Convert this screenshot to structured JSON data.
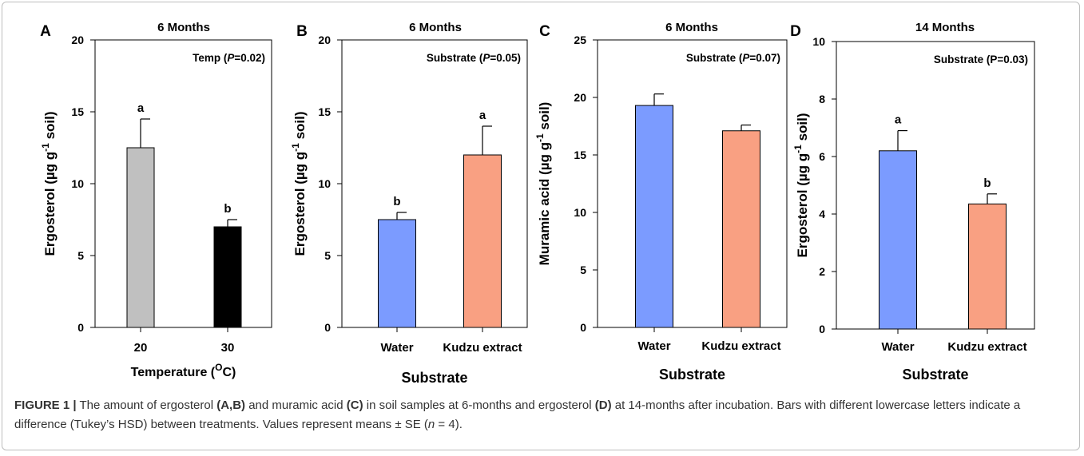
{
  "chart_data": [
    {
      "type": "bar",
      "panel_label": "A",
      "title": "6 Months",
      "annotation": "Temp (P=0.02)",
      "annotation_parts": [
        "Temp (",
        "P",
        "=0.02)"
      ],
      "ylabel_parts": [
        "Ergosterol (µg g",
        "-1",
        " soil)"
      ],
      "xlabel_parts": [
        "Temperature (",
        "O",
        "C)"
      ],
      "ylim": [
        0,
        20
      ],
      "yticks": [
        0,
        5,
        10,
        15,
        20
      ],
      "categories": [
        "20",
        "30"
      ],
      "values": [
        12.5,
        7.0
      ],
      "errors": [
        2.0,
        0.5
      ],
      "letters": [
        "a",
        "b"
      ],
      "colors": [
        "#c0c0c0",
        "#000000"
      ]
    },
    {
      "type": "bar",
      "panel_label": "B",
      "title": "6 Months",
      "annotation": "Substrate (P=0.05)",
      "annotation_parts": [
        "Substrate (",
        "P",
        "=0.05)"
      ],
      "ylabel_parts": [
        "Ergosterol (µg g",
        "-1",
        " soil)"
      ],
      "xlabel_parts": [
        "Substrate",
        "",
        ""
      ],
      "ylim": [
        0,
        20
      ],
      "yticks": [
        0,
        5,
        10,
        15,
        20
      ],
      "categories": [
        "Water",
        "Kudzu extract"
      ],
      "values": [
        7.5,
        12.0
      ],
      "errors": [
        0.5,
        2.0
      ],
      "letters": [
        "b",
        "a"
      ],
      "colors": [
        "#7b9bff",
        "#f9a082"
      ]
    },
    {
      "type": "bar",
      "panel_label": "C",
      "title": "6 Months",
      "annotation": "Substrate (P=0.07)",
      "annotation_parts": [
        "Substrate (",
        "P",
        "=0.07)"
      ],
      "ylabel_parts": [
        "Muramic acid (µg g",
        "-1",
        " soil)"
      ],
      "xlabel_parts": [
        "Substrate",
        "",
        ""
      ],
      "ylim": [
        0,
        25
      ],
      "yticks": [
        0,
        5,
        10,
        15,
        20,
        25
      ],
      "categories": [
        "Water",
        "Kudzu extract"
      ],
      "values": [
        19.3,
        17.1
      ],
      "errors": [
        1.0,
        0.5
      ],
      "letters": [
        "",
        ""
      ],
      "colors": [
        "#7b9bff",
        "#f9a082"
      ]
    },
    {
      "type": "bar",
      "panel_label": "D",
      "title": "14 Months",
      "annotation": "Substrate (P=0.03)",
      "annotation_parts": [
        "Substrate (P=0.03)",
        "",
        ""
      ],
      "ylabel_parts": [
        "Ergosterol (µg g",
        "-1",
        " soil)"
      ],
      "xlabel_parts": [
        "Substrate",
        "",
        ""
      ],
      "ylim": [
        0,
        10
      ],
      "yticks": [
        0,
        2,
        4,
        6,
        8,
        10
      ],
      "categories": [
        "Water",
        "Kudzu extract"
      ],
      "values": [
        6.2,
        4.35
      ],
      "errors": [
        0.7,
        0.35
      ],
      "letters": [
        "a",
        "b"
      ],
      "colors": [
        "#7b9bff",
        "#f9a082"
      ]
    }
  ],
  "caption": {
    "figure_label": "FIGURE 1 |",
    "t1": " The amount of ergosterol ",
    "ref1": "(A,B)",
    "t2": " and muramic acid ",
    "ref2": "(C)",
    "t3": " in soil samples at 6-months and ergosterol ",
    "ref3": "(D)",
    "t4": " at 14-months after incubation. Bars with different lowercase letters indicate a difference (Tukey’s HSD) between treatments. Values represent means ± SE (",
    "n_symbol": "n",
    "t5": " = 4)."
  }
}
